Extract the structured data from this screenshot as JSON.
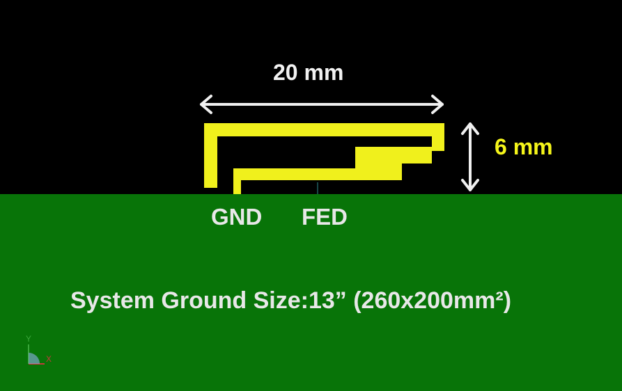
{
  "dimensions": {
    "width_label": "20 mm",
    "height_label": "6 mm"
  },
  "feed_labels": {
    "ground": "GND",
    "fed": "FED"
  },
  "ground_plane": {
    "size_label": "System Ground Size:13” (260x200mm²)"
  },
  "axis_triad": {
    "y_label": "Y",
    "x_label": "X"
  },
  "colors": {
    "background": "#000000",
    "ground_plane": "#087408",
    "antenna_trace": "#f0f01c",
    "height_highlight": "#f5f51a",
    "arrow": "#f0f0f0",
    "label_text": "#e8e8e8",
    "axis_y": "#3aa63a",
    "axis_x": "#c23a3a"
  }
}
